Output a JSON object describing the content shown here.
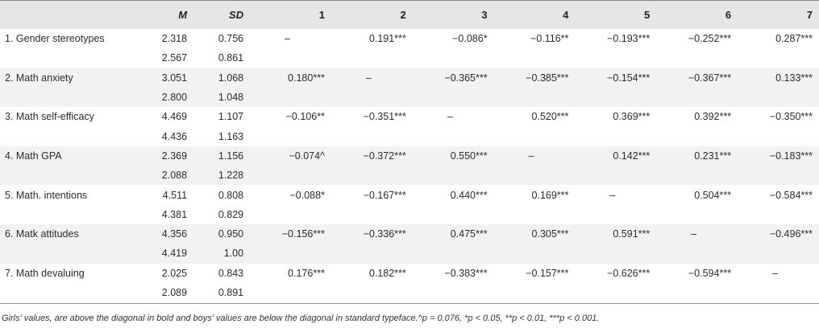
{
  "header": {
    "label": "",
    "m": "M",
    "sd": "SD",
    "cols": [
      "1",
      "2",
      "3",
      "4",
      "5",
      "6",
      "7"
    ]
  },
  "rows": [
    {
      "label": "1. Gender stereotypes",
      "girls": {
        "m": "2.318",
        "sd": "0.756"
      },
      "boys": {
        "m": "2.567",
        "sd": "0.861"
      },
      "cells": [
        "–",
        "0.191***",
        "−0.086*",
        "−0.116**",
        "−0.193***",
        "−0.252***",
        "0.287***"
      ]
    },
    {
      "label": "2. Math anxiety",
      "girls": {
        "m": "3.051",
        "sd": "1.068"
      },
      "boys": {
        "m": "2.800",
        "sd": "1.048"
      },
      "cells": [
        "0.180***",
        "–",
        "−0.365***",
        "−0.385***",
        "−0.154***",
        "−0.367***",
        "0.133***"
      ]
    },
    {
      "label": "3. Math self-efficacy",
      "girls": {
        "m": "4.469",
        "sd": "1.107"
      },
      "boys": {
        "m": "4.436",
        "sd": "1.163"
      },
      "cells": [
        "−0.106**",
        "−0.351***",
        "–",
        "0.520***",
        "0.369***",
        "0.392***",
        "−0.350***"
      ]
    },
    {
      "label": "4. Math GPA",
      "girls": {
        "m": "2.369",
        "sd": "1.156"
      },
      "boys": {
        "m": "2.088",
        "sd": "1.228"
      },
      "cells": [
        "−0.074^",
        "−0.372***",
        "0.550***",
        "–",
        "0.142***",
        "0.231***",
        "−0.183***"
      ]
    },
    {
      "label": "5. Math. intentions",
      "girls": {
        "m": "4.511",
        "sd": "0.808"
      },
      "boys": {
        "m": "4.381",
        "sd": "0.829"
      },
      "cells": [
        "−0.088*",
        "−0.167***",
        "0.440***",
        "0.169***",
        "–",
        "0.504***",
        "−0.584***"
      ]
    },
    {
      "label": "6. Matk attitudes",
      "girls": {
        "m": "4.356",
        "sd": "0.950"
      },
      "boys": {
        "m": "4.419",
        "sd": "1.00"
      },
      "cells": [
        "−0.156***",
        "−0.336***",
        "0.475***",
        "0.305***",
        "0.591***",
        "–",
        "−0.496***"
      ]
    },
    {
      "label": "7. Math devaluing",
      "girls": {
        "m": "2.025",
        "sd": "0.843"
      },
      "boys": {
        "m": "2.089",
        "sd": "0.891"
      },
      "cells": [
        "0.176***",
        "0.182***",
        "−0.383***",
        "−0.157***",
        "−0.626***",
        "−0.594***",
        "–"
      ]
    }
  ],
  "note": "Girls' values, are above the diagonal in bold and boys' values are below the diagonal in standard typeface.^p = 0.076, *p < 0.05, **p < 0.01, ***p < 0.001."
}
